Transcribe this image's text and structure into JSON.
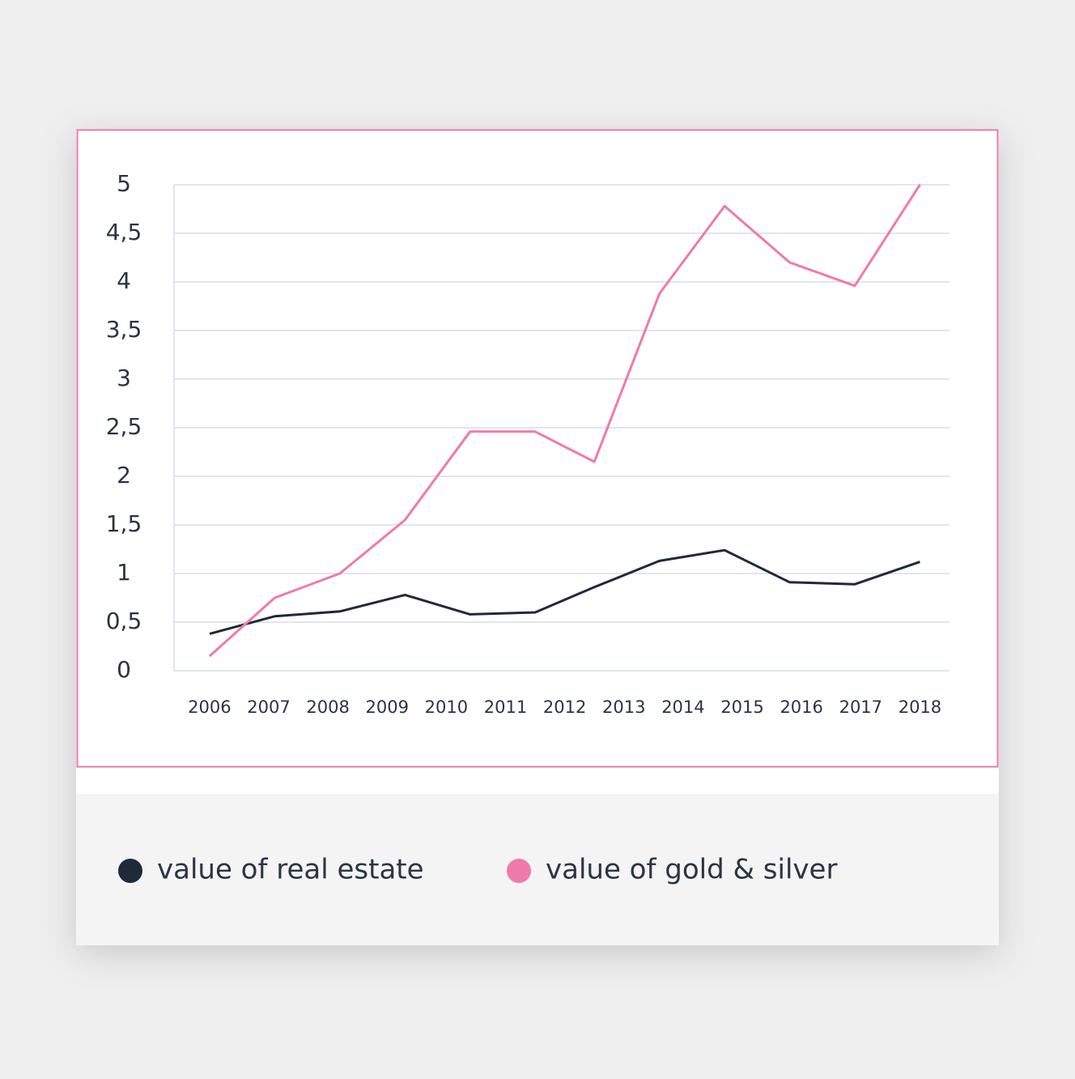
{
  "chart_data": {
    "type": "line",
    "xlim": [
      2005.4,
      2018.5
    ],
    "xticks": [
      2006,
      2007,
      2008,
      2009,
      2010,
      2011,
      2012,
      2013,
      2014,
      2015,
      2016,
      2017,
      2018
    ],
    "ylim": [
      0,
      5
    ],
    "yticks": [
      0,
      {
        "value": 0.5,
        "label": "0,5"
      },
      1,
      {
        "value": 1.5,
        "label": "1,5"
      },
      2,
      {
        "value": 2.5,
        "label": "2,5"
      },
      3,
      {
        "value": 3.5,
        "label": "3,5"
      },
      4,
      {
        "value": 4.5,
        "label": "4,5"
      },
      5
    ],
    "grid": true,
    "x": [
      2006,
      2007.1,
      2008.2,
      2009.3,
      2010.4,
      2011.5,
      2012.5,
      2013.6,
      2014.7,
      2015.8,
      2016.9,
      2018
    ],
    "series": [
      {
        "name": "value of real estate",
        "color": "#1e2a3a",
        "values": [
          0.38,
          0.56,
          0.61,
          0.78,
          0.58,
          0.6,
          0.86,
          1.13,
          1.24,
          0.91,
          0.89,
          1.12
        ]
      },
      {
        "name": "value of gold & silver",
        "color": "#f07aaa",
        "values": [
          0.15,
          0.75,
          1.0,
          1.55,
          2.46,
          2.46,
          2.15,
          3.88,
          4.78,
          4.2,
          3.96,
          5.0
        ]
      }
    ]
  }
}
